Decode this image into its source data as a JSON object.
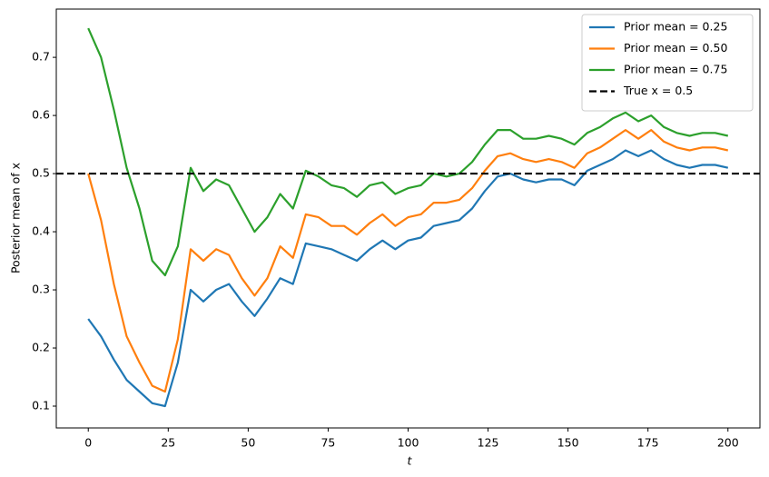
{
  "chart_data": {
    "type": "line",
    "xlabel": "t",
    "ylabel": "Posterior mean of x",
    "x": [
      0,
      4,
      8,
      12,
      16,
      20,
      24,
      28,
      32,
      36,
      40,
      44,
      48,
      52,
      56,
      60,
      64,
      68,
      72,
      76,
      80,
      84,
      88,
      92,
      96,
      100,
      104,
      108,
      112,
      116,
      120,
      124,
      128,
      132,
      136,
      140,
      144,
      148,
      152,
      156,
      160,
      164,
      168,
      172,
      176,
      180,
      184,
      188,
      192,
      196,
      200
    ],
    "series": [
      {
        "name": "Prior mean = 0.25",
        "color": "#1f77b4",
        "values": [
          0.25,
          0.22,
          0.18,
          0.145,
          0.125,
          0.105,
          0.1,
          0.175,
          0.3,
          0.28,
          0.3,
          0.31,
          0.28,
          0.255,
          0.285,
          0.32,
          0.31,
          0.38,
          0.375,
          0.37,
          0.36,
          0.35,
          0.37,
          0.385,
          0.37,
          0.385,
          0.39,
          0.41,
          0.415,
          0.42,
          0.44,
          0.47,
          0.495,
          0.5,
          0.49,
          0.485,
          0.49,
          0.49,
          0.48,
          0.505,
          0.515,
          0.525,
          0.54,
          0.53,
          0.54,
          0.525,
          0.515,
          0.51,
          0.515,
          0.515,
          0.51
        ]
      },
      {
        "name": "Prior mean = 0.50",
        "color": "#ff7f0e",
        "values": [
          0.5,
          0.42,
          0.31,
          0.22,
          0.175,
          0.135,
          0.125,
          0.215,
          0.37,
          0.35,
          0.37,
          0.36,
          0.32,
          0.29,
          0.32,
          0.375,
          0.355,
          0.43,
          0.425,
          0.41,
          0.41,
          0.395,
          0.415,
          0.43,
          0.41,
          0.425,
          0.43,
          0.45,
          0.45,
          0.455,
          0.475,
          0.505,
          0.53,
          0.535,
          0.525,
          0.52,
          0.525,
          0.52,
          0.51,
          0.535,
          0.545,
          0.56,
          0.575,
          0.56,
          0.575,
          0.555,
          0.545,
          0.54,
          0.545,
          0.545,
          0.54
        ]
      },
      {
        "name": "Prior mean = 0.75",
        "color": "#2ca02c",
        "values": [
          0.75,
          0.7,
          0.61,
          0.51,
          0.44,
          0.35,
          0.325,
          0.375,
          0.51,
          0.47,
          0.49,
          0.48,
          0.44,
          0.4,
          0.425,
          0.465,
          0.44,
          0.505,
          0.495,
          0.48,
          0.475,
          0.46,
          0.48,
          0.485,
          0.465,
          0.475,
          0.48,
          0.5,
          0.495,
          0.5,
          0.52,
          0.55,
          0.575,
          0.575,
          0.56,
          0.56,
          0.565,
          0.56,
          0.55,
          0.57,
          0.58,
          0.595,
          0.605,
          0.59,
          0.6,
          0.58,
          0.57,
          0.565,
          0.57,
          0.57,
          0.565
        ]
      }
    ],
    "hline": {
      "name": "True x = 0.5",
      "value": 0.5,
      "color": "#000000"
    },
    "xlim": [
      -10,
      210
    ],
    "xticks": [
      0,
      25,
      50,
      75,
      100,
      125,
      150,
      175,
      200
    ],
    "ylim": [
      0.0625,
      0.783
    ],
    "yticks": [
      0.1,
      0.2,
      0.3,
      0.4,
      0.5,
      0.6,
      0.7
    ],
    "legend": "upper right"
  }
}
